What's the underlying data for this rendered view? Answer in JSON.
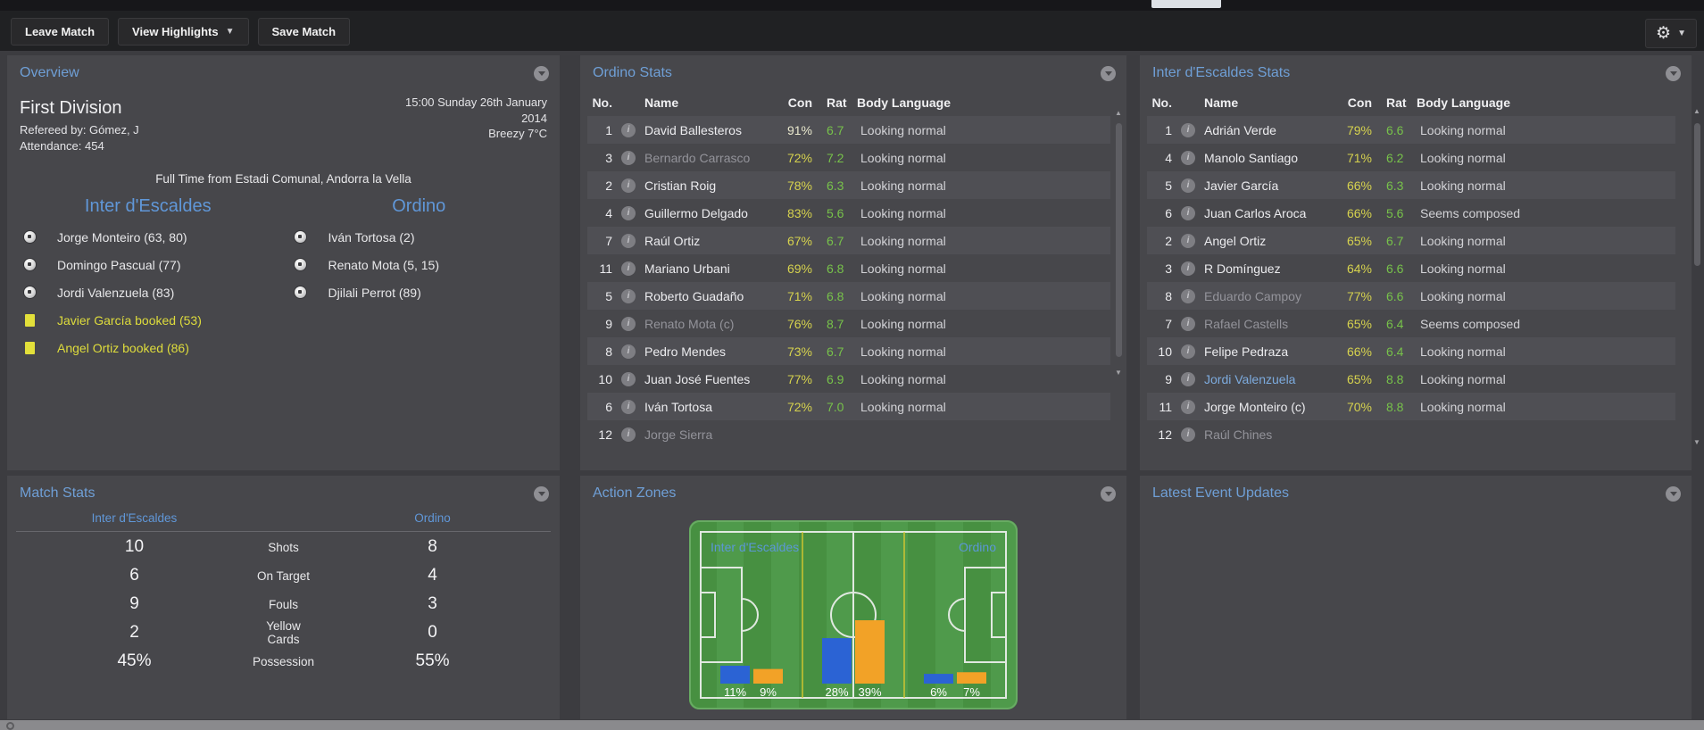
{
  "toolbar": {
    "leave_label": "Leave Match",
    "view_highlights_label": "View Highlights",
    "save_label": "Save Match"
  },
  "overview": {
    "title": "Overview",
    "competition": "First Division",
    "referee": "Refereed by: Gómez, J",
    "attendance": "Attendance: 454",
    "datetime_line1": "15:00 Sunday 26th January",
    "datetime_line2": "2014",
    "weather": "Breezy 7°C",
    "status": "Full Time from Estadi Comunal, Andorra la Vella",
    "home_team": "Inter d'Escaldes",
    "away_team": "Ordino",
    "home_goals": [
      "Jorge Monteiro (63, 80)",
      "Domingo Pascual (77)",
      "Jordi Valenzuela (83)"
    ],
    "away_goals": [
      "Iván Tortosa (2)",
      "Renato Mota (5, 15)",
      "Djilali Perrot (89)"
    ],
    "bookings": [
      "Javier García booked (53)",
      "Angel Ortiz booked (86)"
    ]
  },
  "stats_headers": {
    "no": "No.",
    "name": "Name",
    "con": "Con",
    "rat": "Rat",
    "body": "Body Language"
  },
  "ordino_stats": {
    "title": "Ordino Stats",
    "rows": [
      {
        "no": "1",
        "name": "David Ballesteros",
        "name_class": "",
        "con": "91%",
        "con_class": "pale",
        "rat": "6.7",
        "body": "Looking normal"
      },
      {
        "no": "3",
        "name": "Bernardo Carrasco",
        "name_class": "dim",
        "con": "72%",
        "con_class": "",
        "rat": "7.2",
        "body": "Looking normal"
      },
      {
        "no": "2",
        "name": "Cristian Roig",
        "name_class": "",
        "con": "78%",
        "con_class": "",
        "rat": "6.3",
        "body": "Looking normal"
      },
      {
        "no": "4",
        "name": "Guillermo Delgado",
        "name_class": "",
        "con": "83%",
        "con_class": "",
        "rat": "5.6",
        "body": "Looking normal"
      },
      {
        "no": "7",
        "name": "Raúl Ortiz",
        "name_class": "",
        "con": "67%",
        "con_class": "",
        "rat": "6.7",
        "body": "Looking normal"
      },
      {
        "no": "11",
        "name": "Mariano Urbani",
        "name_class": "",
        "con": "69%",
        "con_class": "",
        "rat": "6.8",
        "body": "Looking normal"
      },
      {
        "no": "5",
        "name": "Roberto Guadaño",
        "name_class": "",
        "con": "71%",
        "con_class": "",
        "rat": "6.8",
        "body": "Looking normal"
      },
      {
        "no": "9",
        "name": "Renato Mota (c)",
        "name_class": "dim",
        "con": "76%",
        "con_class": "",
        "rat": "8.7",
        "body": "Looking normal"
      },
      {
        "no": "8",
        "name": "Pedro Mendes",
        "name_class": "",
        "con": "73%",
        "con_class": "",
        "rat": "6.7",
        "body": "Looking normal"
      },
      {
        "no": "10",
        "name": "Juan José Fuentes",
        "name_class": "",
        "con": "77%",
        "con_class": "",
        "rat": "6.9",
        "body": "Looking normal"
      },
      {
        "no": "6",
        "name": "Iván Tortosa",
        "name_class": "",
        "con": "72%",
        "con_class": "",
        "rat": "7.0",
        "body": "Looking normal"
      },
      {
        "no": "12",
        "name": "Jorge Sierra",
        "name_class": "dim",
        "con": "",
        "con_class": "",
        "rat": "",
        "body": ""
      }
    ]
  },
  "inter_stats": {
    "title": "Inter d'Escaldes Stats",
    "rows": [
      {
        "no": "1",
        "name": "Adrián Verde",
        "name_class": "",
        "con": "79%",
        "con_class": "",
        "rat": "6.6",
        "body": "Looking normal"
      },
      {
        "no": "4",
        "name": "Manolo Santiago",
        "name_class": "",
        "con": "71%",
        "con_class": "",
        "rat": "6.2",
        "body": "Looking normal"
      },
      {
        "no": "5",
        "name": "Javier García",
        "name_class": "",
        "con": "66%",
        "con_class": "",
        "rat": "6.3",
        "body": "Looking normal"
      },
      {
        "no": "6",
        "name": "Juan Carlos Aroca",
        "name_class": "",
        "con": "66%",
        "con_class": "",
        "rat": "5.6",
        "body": "Seems composed"
      },
      {
        "no": "2",
        "name": "Angel Ortiz",
        "name_class": "",
        "con": "65%",
        "con_class": "",
        "rat": "6.7",
        "body": "Looking normal"
      },
      {
        "no": "3",
        "name": "R Domínguez",
        "name_class": "",
        "con": "64%",
        "con_class": "",
        "rat": "6.6",
        "body": "Looking normal"
      },
      {
        "no": "8",
        "name": "Eduardo Campoy",
        "name_class": "dim",
        "con": "77%",
        "con_class": "",
        "rat": "6.6",
        "body": "Looking normal"
      },
      {
        "no": "7",
        "name": "Rafael Castells",
        "name_class": "dim",
        "con": "65%",
        "con_class": "",
        "rat": "6.4",
        "body": "Seems composed"
      },
      {
        "no": "10",
        "name": "Felipe Pedraza",
        "name_class": "",
        "con": "66%",
        "con_class": "",
        "rat": "6.4",
        "body": "Looking normal"
      },
      {
        "no": "9",
        "name": "Jordi Valenzuela",
        "name_class": "link",
        "con": "65%",
        "con_class": "",
        "rat": "8.8",
        "body": "Looking normal"
      },
      {
        "no": "11",
        "name": "Jorge Monteiro (c)",
        "name_class": "",
        "con": "70%",
        "con_class": "",
        "rat": "8.8",
        "body": "Looking normal"
      },
      {
        "no": "12",
        "name": "Raúl Chines",
        "name_class": "dim",
        "con": "",
        "con_class": "",
        "rat": "",
        "body": ""
      }
    ]
  },
  "match_stats": {
    "title": "Match Stats",
    "home_team": "Inter d'Escaldes",
    "away_team": "Ordino",
    "rows": [
      {
        "home": "10",
        "label": "Shots",
        "away": "8"
      },
      {
        "home": "6",
        "label": "On Target",
        "away": "4"
      },
      {
        "home": "9",
        "label": "Fouls",
        "away": "3"
      },
      {
        "home": "2",
        "label": "Yellow Cards",
        "away": "0"
      },
      {
        "home": "45%",
        "label": "Possession",
        "away": "55%"
      }
    ]
  },
  "action_zones": {
    "title": "Action Zones",
    "home_label": "Inter d'Escaldes",
    "away_label": "Ordino",
    "zones": [
      {
        "home": 11,
        "away": 9
      },
      {
        "home": 28,
        "away": 39
      },
      {
        "home": 6,
        "away": 7
      }
    ]
  },
  "events": {
    "title": "Latest Event Updates"
  },
  "colors": {
    "accent_blue": "#6f9fd6",
    "condition_yellow": "#d6d24e",
    "rating_green": "#77c24a",
    "booking_yellow": "#dedc3c",
    "home_bar": "#2b63d4",
    "away_bar": "#f2a227"
  }
}
